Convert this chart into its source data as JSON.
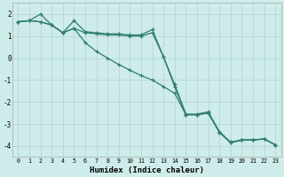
{
  "xlabel": "Humidex (Indice chaleur)",
  "background_color": "#ceecea",
  "grid_color": "#b8dbd8",
  "line_color": "#2e7d6e",
  "xlim": [
    -0.5,
    23.5
  ],
  "ylim": [
    -4.5,
    2.5
  ],
  "yticks": [
    -4,
    -3,
    -2,
    -1,
    0,
    1,
    2
  ],
  "xticks": [
    0,
    1,
    2,
    3,
    4,
    5,
    6,
    7,
    8,
    9,
    10,
    11,
    12,
    13,
    14,
    15,
    16,
    17,
    18,
    19,
    20,
    21,
    22,
    23
  ],
  "line1_y": [
    1.65,
    1.7,
    2.0,
    1.5,
    1.15,
    1.7,
    1.2,
    1.15,
    1.1,
    1.1,
    1.05,
    1.05,
    1.3,
    0.05,
    -1.2,
    -2.55,
    -2.55,
    -2.45,
    -3.35,
    -3.82,
    -3.72,
    -3.72,
    -3.68,
    -3.95
  ],
  "line2_y": [
    1.65,
    1.7,
    1.65,
    1.5,
    1.15,
    1.35,
    1.15,
    1.1,
    1.05,
    1.05,
    1.0,
    1.0,
    1.15,
    0.05,
    -1.3,
    -2.58,
    -2.58,
    -2.5,
    -3.38,
    -3.85,
    -3.73,
    -3.73,
    -3.68,
    -3.95
  ],
  "line3_y": [
    1.65,
    1.7,
    1.65,
    1.5,
    1.15,
    1.35,
    0.7,
    0.3,
    0.0,
    -0.3,
    -0.55,
    -0.8,
    -1.0,
    -1.3,
    -1.6,
    -2.58,
    -2.58,
    -2.5,
    -3.38,
    -3.85,
    -3.73,
    -3.73,
    -3.68,
    -3.95
  ]
}
